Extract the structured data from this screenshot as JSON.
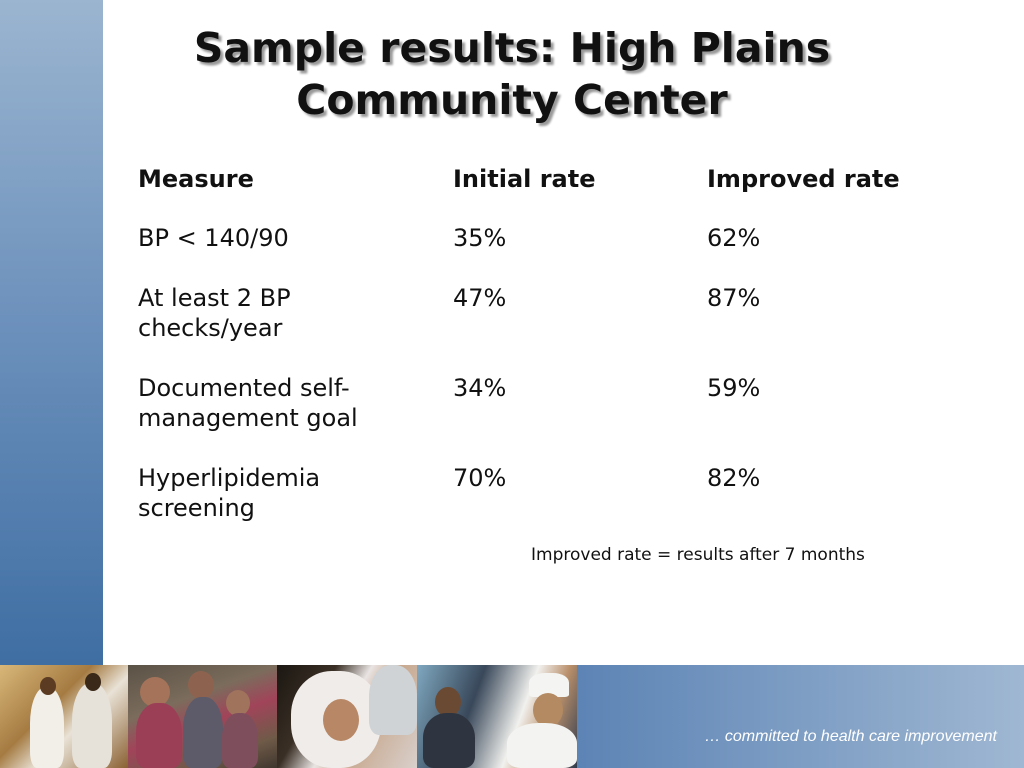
{
  "slide": {
    "title_line1": "Sample results: High Plains",
    "title_line2": "Community Center"
  },
  "table": {
    "headers": [
      "Measure",
      "Initial rate",
      "Improved rate"
    ],
    "rows": [
      {
        "measure_line1": "BP < 140/90",
        "measure_line2": "",
        "initial": "35%",
        "improved": "62%"
      },
      {
        "measure_line1": "At least 2 BP",
        "measure_line2": "checks/year",
        "initial": "47%",
        "improved": "87%"
      },
      {
        "measure_line1": "Documented self-",
        "measure_line2": "management goal",
        "initial": "34%",
        "improved": "59%"
      },
      {
        "measure_line1": "Hyperlipidemia",
        "measure_line2": "screening",
        "initial": "70%",
        "improved": "82%"
      }
    ]
  },
  "footnote": "Improved rate = results after 7 months",
  "footer": {
    "tagline": "… committed to health care improvement"
  },
  "colors": {
    "side_bar": "#6f93bd",
    "bottom_band": "#5a82b4",
    "text": "#111111"
  }
}
